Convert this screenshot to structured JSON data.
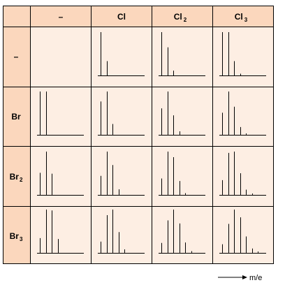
{
  "table": {
    "column_headers": [
      {
        "base": "–",
        "sub": ""
      },
      {
        "base": "Cl",
        "sub": ""
      },
      {
        "base": "Cl",
        "sub": "2"
      },
      {
        "base": "Cl",
        "sub": "3"
      }
    ],
    "row_headers": [
      {
        "base": "–",
        "sub": ""
      },
      {
        "base": "Br",
        "sub": ""
      },
      {
        "base": "Br",
        "sub": "2"
      },
      {
        "base": "Br",
        "sub": "3"
      }
    ]
  },
  "axis_label": "m/e",
  "colors": {
    "header_fill": "#fbd7bd",
    "cell_fill": "#fdeee3",
    "border": "#000000",
    "peak": "#000000"
  },
  "chart_data": {
    "type": "bar",
    "description_units": "relative peak intensity (tallest peak = 1.0), peaks spaced 2 m/e apart",
    "grid": [
      [
        null,
        [
          1.0,
          0.33
        ],
        [
          1.0,
          0.65,
          0.11
        ],
        [
          1.0,
          1.0,
          0.33,
          0.04
        ]
      ],
      [
        [
          1.0,
          1.0
        ],
        [
          0.77,
          1.0,
          0.25
        ],
        [
          0.61,
          1.0,
          0.45,
          0.08
        ],
        [
          0.51,
          1.0,
          0.65,
          0.18,
          0.02
        ]
      ],
      [
        [
          0.51,
          1.0,
          0.49
        ],
        [
          0.44,
          1.0,
          0.69,
          0.13
        ],
        [
          0.38,
          1.0,
          0.87,
          0.32,
          0.04
        ],
        [
          0.34,
          0.97,
          1.0,
          0.5,
          0.12,
          0.01
        ]
      ],
      [
        [
          0.34,
          1.0,
          0.98,
          0.32
        ],
        [
          0.26,
          0.87,
          1.0,
          0.48,
          0.08
        ],
        [
          0.23,
          0.75,
          1.0,
          0.68,
          0.24,
          0.04
        ],
        [
          0.2,
          0.67,
          1.0,
          0.82,
          0.38,
          0.1,
          0.01
        ]
      ]
    ]
  }
}
